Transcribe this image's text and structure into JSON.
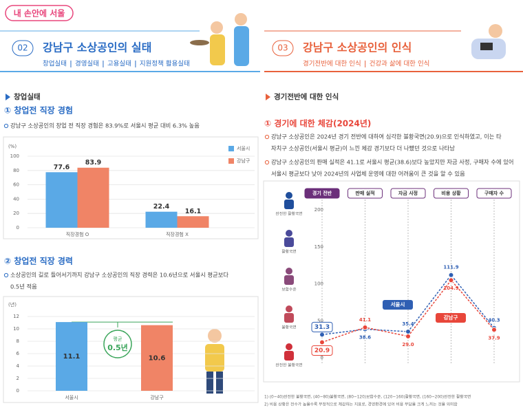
{
  "header": {
    "brand": "내 손안에 서울"
  },
  "sections": [
    {
      "number": "02",
      "title": "강남구 소상공인의 실태",
      "tabs": [
        "창업실태",
        "경영실태",
        "고용실태",
        "지원정책 활용실태"
      ]
    },
    {
      "number": "03",
      "title": "강남구 소상공인의 인식",
      "tabs": [
        "경기전반에 대한 인식",
        "건강과 삶에 대한 인식"
      ]
    }
  ],
  "left": {
    "heading": "창업실태",
    "sub1": "① 창업전 직장 경험",
    "text1": "강남구 소상공인의 창업 전 직장 경험은 83.9%로 서울시 평균 대비 6.3% 높음",
    "sub2": "② 창업전 직장 경력",
    "text2": [
      "소상공인의 길로 들어서기까지 강남구 소상공인의 직장 경력은 10.6년으로 서울시 평균보다",
      "0.5년 적음"
    ]
  },
  "right": {
    "heading": "경기전반에 대한 인식",
    "sub": "① 경기에 대한 체감(2024년)",
    "bullets": [
      [
        "강남구 소상공인은 2024년 경기 전반에 대하여 심각한 불황국면(20.9)으로 인식하였고, 이는 타",
        "자치구 소상공인(서울시 평균)이 느낀 체감 경기보다 더 나빴던 것으로 나타남"
      ],
      [
        "강남구 소상공인의 판매 실적은 41.1로 서울시 평균(38.6)보다 높았지만 자금 사정, 구매자 수에 있어",
        "서울시 평균보다 낮아 2024년의 사업체 운영에 대한 어려움이 큰 것을 알 수 있음"
      ]
    ],
    "footnotes": [
      "1)   (0~40)완전한 불황국면, (40~80)불황국면, (80~120)보합수준, (120~160)활황국면, (160~200)완전한 활황국면",
      "2)   비용 상황은 전수가 높을수록 부정적으로 체감하는 지표로, 경영환경에 있어 비용 부담을 크게 느끼는 것을 의미함"
    ]
  },
  "chart_data": [
    {
      "type": "grouped_bar",
      "y_unit": "(%)",
      "categories": [
        "직장경험 O",
        "직장경험 X"
      ],
      "series": [
        {
          "name": "서울시",
          "color": "#5aa9e6",
          "values": [
            77.6,
            22.4
          ]
        },
        {
          "name": "강남구",
          "color": "#f08466",
          "values": [
            83.9,
            16.1
          ]
        }
      ],
      "ylim": [
        0,
        100
      ],
      "yticks": [
        0,
        20,
        40,
        60,
        80,
        100
      ],
      "grid": true
    },
    {
      "type": "bar",
      "y_unit": "(년)",
      "categories": [
        "서울시",
        "강남구"
      ],
      "values": [
        11.1,
        10.6
      ],
      "colors": [
        "#5aa9e6",
        "#f08466"
      ],
      "annotation": [
        "평균",
        "0.5년"
      ],
      "ylim": [
        0,
        12
      ],
      "yticks": [
        0,
        2,
        4,
        6,
        8,
        10,
        12
      ],
      "grid": true
    },
    {
      "type": "line",
      "categories": [
        "경기 전반",
        "판매 실적",
        "자금 사정",
        "비용 상황",
        "구매자 수"
      ],
      "levels": [
        "완전한 활황국면",
        "활황국면",
        "보합수준",
        "불황국면",
        "완전한 불황국면"
      ],
      "series": [
        {
          "name": "서울시",
          "color": "#2f5fb3",
          "values": [
            31.3,
            38.6,
            35.4,
            111.9,
            40.3
          ]
        },
        {
          "name": "강남구",
          "color": "#e8463a",
          "values": [
            20.9,
            41.1,
            29.0,
            104.9,
            37.9
          ],
          "value_labels": [
            "20.9",
            "41.1",
            "29.0",
            "104.9",
            "37.9"
          ]
        }
      ],
      "ylim": [
        0,
        200
      ],
      "yticks": [
        0,
        50,
        100,
        150,
        200
      ],
      "grid": false
    }
  ]
}
